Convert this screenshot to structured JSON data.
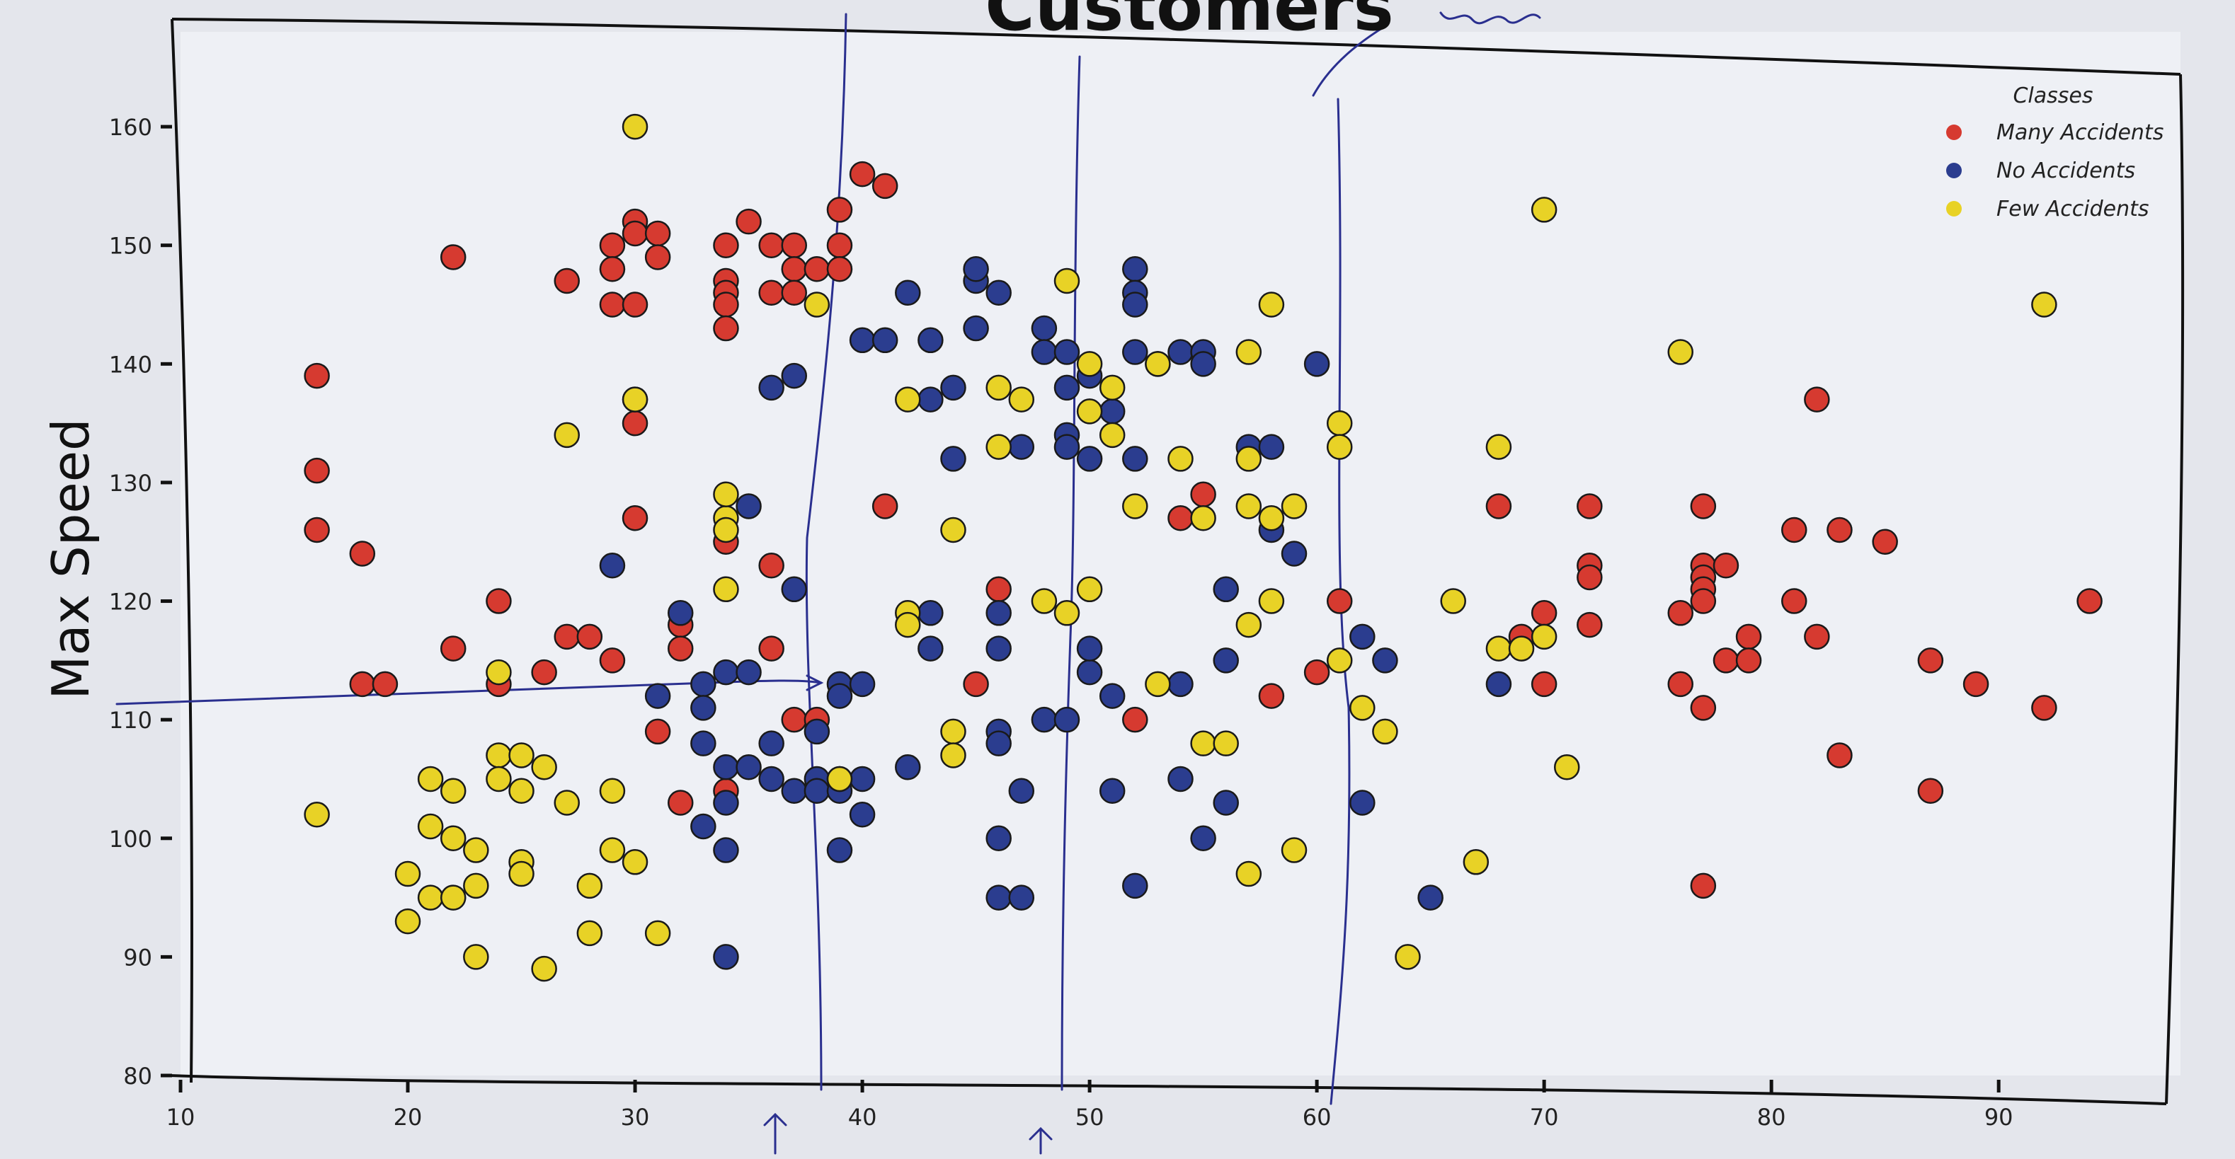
{
  "chart_data": {
    "type": "scatter",
    "title": "Customers",
    "ylabel": "Max Speed",
    "xlabel": "",
    "xlim": [
      10,
      98
    ],
    "ylim": [
      80,
      168
    ],
    "xticks": [
      10,
      20,
      30,
      40,
      50,
      60,
      70,
      80,
      90
    ],
    "yticks": [
      80,
      90,
      100,
      110,
      120,
      130,
      140,
      150,
      160
    ],
    "grid": false,
    "legend": {
      "title": "Classes",
      "placement": "top-right"
    },
    "series": [
      {
        "name": "Many Accidents",
        "color": "#d63a30",
        "points": [
          [
            16,
            139
          ],
          [
            16,
            131
          ],
          [
            16,
            126
          ],
          [
            18,
            124
          ],
          [
            18,
            113
          ],
          [
            19,
            113
          ],
          [
            22,
            149
          ],
          [
            22,
            116
          ],
          [
            24,
            120
          ],
          [
            24,
            113
          ],
          [
            26,
            114
          ],
          [
            27,
            147
          ],
          [
            27,
            117
          ],
          [
            28,
            117
          ],
          [
            29,
            115
          ],
          [
            29,
            150
          ],
          [
            29,
            148
          ],
          [
            29,
            145
          ],
          [
            30,
            152
          ],
          [
            30,
            151
          ],
          [
            30,
            145
          ],
          [
            30,
            135
          ],
          [
            30,
            127
          ],
          [
            31,
            151
          ],
          [
            31,
            149
          ],
          [
            31,
            109
          ],
          [
            32,
            118
          ],
          [
            32,
            116
          ],
          [
            32,
            103
          ],
          [
            34,
            150
          ],
          [
            34,
            147
          ],
          [
            34,
            146
          ],
          [
            34,
            145
          ],
          [
            34,
            143
          ],
          [
            34,
            125
          ],
          [
            34,
            104
          ],
          [
            35,
            152
          ],
          [
            36,
            150
          ],
          [
            36,
            146
          ],
          [
            36,
            123
          ],
          [
            36,
            116
          ],
          [
            37,
            150
          ],
          [
            37,
            148
          ],
          [
            37,
            146
          ],
          [
            37,
            110
          ],
          [
            38,
            148
          ],
          [
            38,
            110
          ],
          [
            39,
            153
          ],
          [
            39,
            150
          ],
          [
            39,
            148
          ],
          [
            40,
            156
          ],
          [
            41,
            155
          ],
          [
            41,
            128
          ],
          [
            45,
            113
          ],
          [
            46,
            121
          ],
          [
            52,
            110
          ],
          [
            54,
            127
          ],
          [
            55,
            129
          ],
          [
            58,
            112
          ],
          [
            60,
            114
          ],
          [
            61,
            120
          ],
          [
            68,
            128
          ],
          [
            69,
            117
          ],
          [
            70,
            119
          ],
          [
            70,
            113
          ],
          [
            72,
            128
          ],
          [
            72,
            123
          ],
          [
            72,
            122
          ],
          [
            72,
            118
          ],
          [
            76,
            119
          ],
          [
            76,
            113
          ],
          [
            77,
            128
          ],
          [
            77,
            123
          ],
          [
            77,
            122
          ],
          [
            77,
            121
          ],
          [
            77,
            120
          ],
          [
            77,
            111
          ],
          [
            77,
            96
          ],
          [
            78,
            123
          ],
          [
            78,
            115
          ],
          [
            79,
            117
          ],
          [
            79,
            115
          ],
          [
            81,
            126
          ],
          [
            81,
            120
          ],
          [
            82,
            117
          ],
          [
            82,
            137
          ],
          [
            83,
            107
          ],
          [
            83,
            126
          ],
          [
            85,
            125
          ],
          [
            87,
            115
          ],
          [
            87,
            104
          ],
          [
            89,
            113
          ],
          [
            92,
            111
          ],
          [
            94,
            120
          ]
        ]
      },
      {
        "name": "No Accidents",
        "color": "#2b3d8f",
        "points": [
          [
            29,
            123
          ],
          [
            31,
            112
          ],
          [
            32,
            119
          ],
          [
            33,
            113
          ],
          [
            33,
            111
          ],
          [
            33,
            108
          ],
          [
            33,
            101
          ],
          [
            34,
            114
          ],
          [
            34,
            106
          ],
          [
            34,
            103
          ],
          [
            34,
            99
          ],
          [
            34,
            90
          ],
          [
            35,
            114
          ],
          [
            35,
            106
          ],
          [
            35,
            128
          ],
          [
            36,
            138
          ],
          [
            36,
            108
          ],
          [
            36,
            105
          ],
          [
            37,
            139
          ],
          [
            37,
            104
          ],
          [
            37,
            121
          ],
          [
            38,
            109
          ],
          [
            38,
            105
          ],
          [
            38,
            104
          ],
          [
            39,
            104
          ],
          [
            39,
            99
          ],
          [
            39,
            113
          ],
          [
            39,
            112
          ],
          [
            39,
            105
          ],
          [
            40,
            113
          ],
          [
            40,
            102
          ],
          [
            40,
            105
          ],
          [
            40,
            142
          ],
          [
            41,
            142
          ],
          [
            42,
            146
          ],
          [
            42,
            106
          ],
          [
            43,
            119
          ],
          [
            43,
            116
          ],
          [
            43,
            142
          ],
          [
            43,
            137
          ],
          [
            44,
            138
          ],
          [
            44,
            132
          ],
          [
            45,
            143
          ],
          [
            45,
            147
          ],
          [
            45,
            148
          ],
          [
            46,
            146
          ],
          [
            46,
            119
          ],
          [
            46,
            116
          ],
          [
            46,
            109
          ],
          [
            46,
            108
          ],
          [
            46,
            100
          ],
          [
            46,
            95
          ],
          [
            47,
            95
          ],
          [
            47,
            104
          ],
          [
            47,
            133
          ],
          [
            48,
            143
          ],
          [
            48,
            141
          ],
          [
            48,
            110
          ],
          [
            49,
            138
          ],
          [
            49,
            141
          ],
          [
            49,
            134
          ],
          [
            49,
            133
          ],
          [
            49,
            110
          ],
          [
            50,
            132
          ],
          [
            50,
            139
          ],
          [
            50,
            114
          ],
          [
            50,
            116
          ],
          [
            51,
            136
          ],
          [
            51,
            112
          ],
          [
            51,
            104
          ],
          [
            52,
            148
          ],
          [
            52,
            146
          ],
          [
            52,
            145
          ],
          [
            52,
            141
          ],
          [
            52,
            132
          ],
          [
            52,
            96
          ],
          [
            53,
            140
          ],
          [
            54,
            141
          ],
          [
            54,
            105
          ],
          [
            54,
            113
          ],
          [
            55,
            141
          ],
          [
            55,
            140
          ],
          [
            55,
            100
          ],
          [
            56,
            121
          ],
          [
            56,
            115
          ],
          [
            56,
            103
          ],
          [
            57,
            133
          ],
          [
            58,
            126
          ],
          [
            58,
            133
          ],
          [
            59,
            124
          ],
          [
            60,
            140
          ],
          [
            62,
            117
          ],
          [
            62,
            103
          ],
          [
            63,
            115
          ],
          [
            65,
            95
          ],
          [
            68,
            113
          ]
        ]
      },
      {
        "name": "Few Accidents",
        "color": "#e8d226",
        "points": [
          [
            16,
            102
          ],
          [
            20,
            97
          ],
          [
            20,
            93
          ],
          [
            21,
            101
          ],
          [
            21,
            105
          ],
          [
            21,
            95
          ],
          [
            22,
            100
          ],
          [
            22,
            104
          ],
          [
            22,
            95
          ],
          [
            23,
            99
          ],
          [
            23,
            96
          ],
          [
            23,
            90
          ],
          [
            24,
            114
          ],
          [
            24,
            107
          ],
          [
            24,
            105
          ],
          [
            25,
            107
          ],
          [
            25,
            98
          ],
          [
            25,
            97
          ],
          [
            25,
            104
          ],
          [
            26,
            106
          ],
          [
            26,
            89
          ],
          [
            27,
            134
          ],
          [
            27,
            103
          ],
          [
            28,
            96
          ],
          [
            28,
            92
          ],
          [
            29,
            104
          ],
          [
            29,
            99
          ],
          [
            30,
            137
          ],
          [
            30,
            137
          ],
          [
            30,
            98
          ],
          [
            30,
            160
          ],
          [
            31,
            92
          ],
          [
            34,
            127
          ],
          [
            34,
            121
          ],
          [
            34,
            126
          ],
          [
            34,
            129
          ],
          [
            38,
            145
          ],
          [
            39,
            105
          ],
          [
            42,
            137
          ],
          [
            42,
            119
          ],
          [
            42,
            118
          ],
          [
            44,
            126
          ],
          [
            44,
            109
          ],
          [
            44,
            107
          ],
          [
            46,
            138
          ],
          [
            46,
            133
          ],
          [
            47,
            137
          ],
          [
            48,
            120
          ],
          [
            49,
            147
          ],
          [
            49,
            119
          ],
          [
            50,
            140
          ],
          [
            50,
            136
          ],
          [
            50,
            121
          ],
          [
            51,
            134
          ],
          [
            51,
            138
          ],
          [
            52,
            128
          ],
          [
            53,
            113
          ],
          [
            53,
            140
          ],
          [
            54,
            132
          ],
          [
            55,
            127
          ],
          [
            55,
            108
          ],
          [
            56,
            108
          ],
          [
            57,
            141
          ],
          [
            57,
            132
          ],
          [
            57,
            128
          ],
          [
            57,
            118
          ],
          [
            57,
            97
          ],
          [
            58,
            145
          ],
          [
            58,
            120
          ],
          [
            58,
            127
          ],
          [
            59,
            128
          ],
          [
            59,
            99
          ],
          [
            61,
            135
          ],
          [
            61,
            133
          ],
          [
            61,
            115
          ],
          [
            62,
            111
          ],
          [
            63,
            109
          ],
          [
            64,
            90
          ],
          [
            66,
            120
          ],
          [
            67,
            98
          ],
          [
            68,
            133
          ],
          [
            68,
            116
          ],
          [
            69,
            116
          ],
          [
            70,
            153
          ],
          [
            70,
            117
          ],
          [
            71,
            106
          ],
          [
            76,
            141
          ],
          [
            92,
            145
          ]
        ]
      }
    ]
  }
}
